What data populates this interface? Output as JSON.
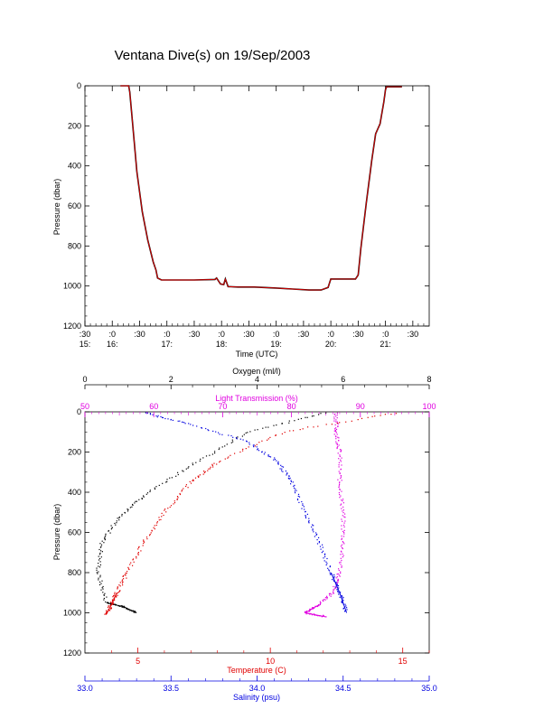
{
  "title": "Ventana Dive(s) on 19/Sep/2003",
  "colors": {
    "black": "#000000",
    "red": "#e00000",
    "blue": "#0000e0",
    "magenta": "#e000e0"
  },
  "chart_data": [
    {
      "type": "line",
      "xlabel": "Time (UTC)",
      "ylabel": "Pressure (dbar)",
      "ylim": [
        1200,
        0
      ],
      "y_ticks": [
        "0",
        "200",
        "400",
        "600",
        "800",
        "1000",
        "1200"
      ],
      "x_tick_top": [
        ":30",
        ":0",
        ":30",
        ":0",
        ":30",
        ":0",
        ":30",
        ":0",
        ":30",
        ":0",
        ":30",
        ":0",
        ":30"
      ],
      "x_tick_bottom": [
        "15:",
        "16:",
        "",
        "17:",
        "",
        "18:",
        "",
        "19:",
        "",
        "20:",
        "",
        "21:",
        ""
      ],
      "x_ticks_hours": [
        15.5,
        16.0,
        16.5,
        17.0,
        17.5,
        18.0,
        18.5,
        19.0,
        19.5,
        20.0,
        20.5,
        21.0,
        21.5
      ],
      "xlim_hours": [
        15.5,
        21.8
      ],
      "series": [
        {
          "color": "red",
          "x_hours": [
            16.15,
            16.3,
            16.32,
            16.36,
            16.45,
            16.55,
            16.65,
            16.75,
            16.8,
            16.83,
            16.9,
            17.2,
            17.5,
            17.88,
            17.91,
            17.98,
            18.04,
            18.07,
            18.12,
            18.3,
            18.6,
            19.0,
            19.3,
            19.6,
            19.82,
            19.95,
            20.0,
            20.05,
            20.2,
            20.45,
            20.5,
            20.55,
            20.65,
            20.75,
            20.82,
            20.9,
            20.97,
            21.0,
            21.02,
            21.05,
            21.15,
            21.3
          ],
          "y_dbar": [
            0,
            0,
            30,
            150,
            430,
            630,
            770,
            880,
            920,
            960,
            970,
            970,
            970,
            967,
            960,
            990,
            993,
            965,
            1003,
            1005,
            1005,
            1010,
            1015,
            1020,
            1020,
            1007,
            965,
            965,
            965,
            965,
            945,
            810,
            580,
            370,
            240,
            190,
            80,
            20,
            5,
            5,
            5,
            5
          ]
        }
      ]
    },
    {
      "type": "scatter",
      "ylabel": "Pressure (dbar)",
      "ylim": [
        1200,
        0
      ],
      "y_ticks": [
        "0",
        "200",
        "400",
        "600",
        "800",
        "1000",
        "1200"
      ],
      "axes": {
        "oxygen": {
          "label": "Oxygen (ml/l)",
          "range": [
            0,
            8
          ],
          "ticks": [
            "0",
            "2",
            "4",
            "6",
            "8"
          ],
          "color": "black"
        },
        "light_transmission": {
          "label": "Light Transmission (%)",
          "range": [
            50,
            100
          ],
          "ticks": [
            "50",
            "60",
            "70",
            "80",
            "90",
            "100"
          ],
          "color": "magenta"
        },
        "temperature": {
          "label": "Temperature (C)",
          "range": [
            3,
            16
          ],
          "ticks": [
            "5",
            "10",
            "15"
          ],
          "color": "red"
        },
        "salinity": {
          "label": "Salinity (psu)",
          "range": [
            33.0,
            35.0
          ],
          "ticks": [
            "33.0",
            "33.5",
            "34.0",
            "34.5",
            "35.0"
          ],
          "color": "blue"
        }
      },
      "series": [
        {
          "name": "Oxygen (ml/l)",
          "color": "black",
          "axis": "oxygen",
          "x": [
            5.6,
            3.8,
            2.6,
            1.5,
            0.8,
            0.4,
            0.3,
            0.5,
            0.9,
            1.2
          ],
          "y": [
            5,
            100,
            250,
            400,
            520,
            650,
            800,
            950,
            970,
            1000
          ]
        },
        {
          "name": "Light Transmission (%)",
          "color": "magenta",
          "axis": "light_transmission",
          "x": [
            86.5,
            86.5,
            87.0,
            87.0,
            87.5,
            87.5,
            87.0,
            86.0,
            84.0,
            82.0,
            85.0
          ],
          "y": [
            5,
            100,
            200,
            350,
            500,
            650,
            800,
            900,
            960,
            1000,
            1020
          ]
        },
        {
          "name": "Temperature (C)",
          "color": "red",
          "axis": "temperature",
          "x": [
            14.8,
            10.5,
            8.0,
            7.0,
            6.0,
            5.2,
            4.6,
            4.2,
            4.0,
            3.8
          ],
          "y": [
            5,
            100,
            250,
            350,
            500,
            650,
            800,
            900,
            960,
            1010
          ]
        },
        {
          "name": "Salinity (psu)",
          "color": "blue",
          "axis": "salinity",
          "x": [
            33.35,
            33.6,
            33.95,
            34.12,
            34.2,
            34.28,
            34.36,
            34.43,
            34.48,
            34.52
          ],
          "y": [
            5,
            60,
            150,
            250,
            350,
            500,
            650,
            800,
            900,
            1000
          ]
        }
      ]
    }
  ]
}
